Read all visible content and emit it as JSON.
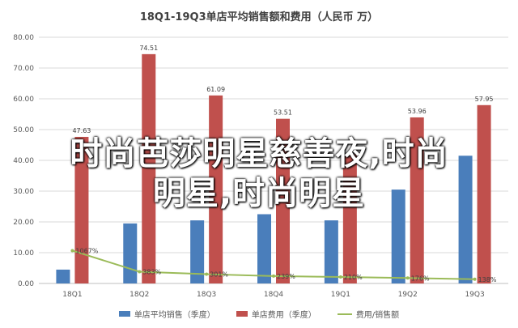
{
  "chart_data": {
    "type": "bar",
    "title": "18Q1-19Q3单店平均销售额和费用（人民币  万）",
    "categories": [
      "18Q1",
      "18Q2",
      "18Q3",
      "18Q4",
      "19Q1",
      "19Q2",
      "19Q3"
    ],
    "ylim": [
      0,
      80
    ],
    "yticks": [
      "0.00",
      "10.00",
      "20.00",
      "30.00",
      "40.00",
      "50.00",
      "60.00",
      "70.00",
      "80.00"
    ],
    "grid": true,
    "legend_position": "bottom",
    "series": [
      {
        "name": "单店平均销售（季度）",
        "type": "bar",
        "color": "#4a7ebb",
        "values": [
          4.5,
          19.5,
          20.5,
          22.5,
          20.5,
          30.5,
          41.5
        ],
        "labels": [
          "",
          "",
          "",
          "",
          "",
          "",
          ""
        ]
      },
      {
        "name": "单店费用（季度）",
        "type": "bar",
        "color": "#c0504d",
        "values": [
          47.63,
          74.51,
          61.09,
          53.51,
          42.0,
          53.96,
          57.95
        ],
        "labels": [
          "47.63",
          "74.51",
          "61.09",
          "53.51",
          "",
          "53.96",
          "57.95"
        ]
      },
      {
        "name": "费用/销售额",
        "type": "line",
        "color": "#9bbb59",
        "values": [
          10.67,
          3.83,
          3.01,
          2.39,
          2.1,
          1.76,
          1.38
        ],
        "labels": [
          "1067%",
          "383%",
          "301%",
          "239%",
          "210%",
          "176%",
          "138%"
        ]
      }
    ]
  },
  "overlay": {
    "line1": "时尚芭莎明星慈善夜,时尚",
    "line2": "明星,时尚明星"
  }
}
